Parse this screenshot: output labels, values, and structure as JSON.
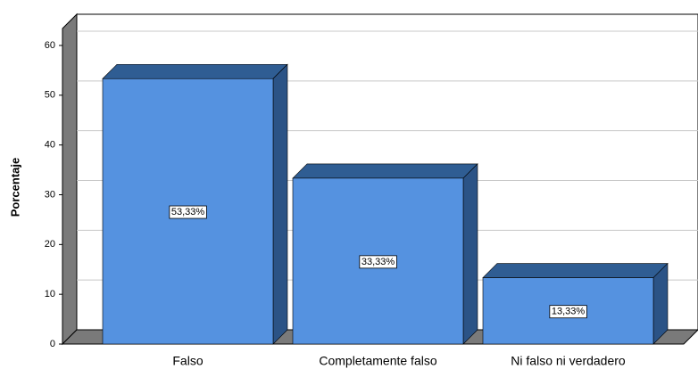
{
  "chart_data": {
    "type": "bar3d",
    "y_label": "Porcentaje",
    "categories": [
      "Falso",
      "Completamente falso",
      "Ni falso ni verdadero"
    ],
    "values": [
      53.33,
      33.33,
      13.33
    ],
    "value_labels": [
      "53,33%",
      "33,33%",
      "13,33%"
    ],
    "color": "#5592e0",
    "ylim": [
      0,
      60
    ],
    "yticks": [
      0,
      10,
      20,
      30,
      40,
      50,
      60
    ],
    "grid": true
  }
}
